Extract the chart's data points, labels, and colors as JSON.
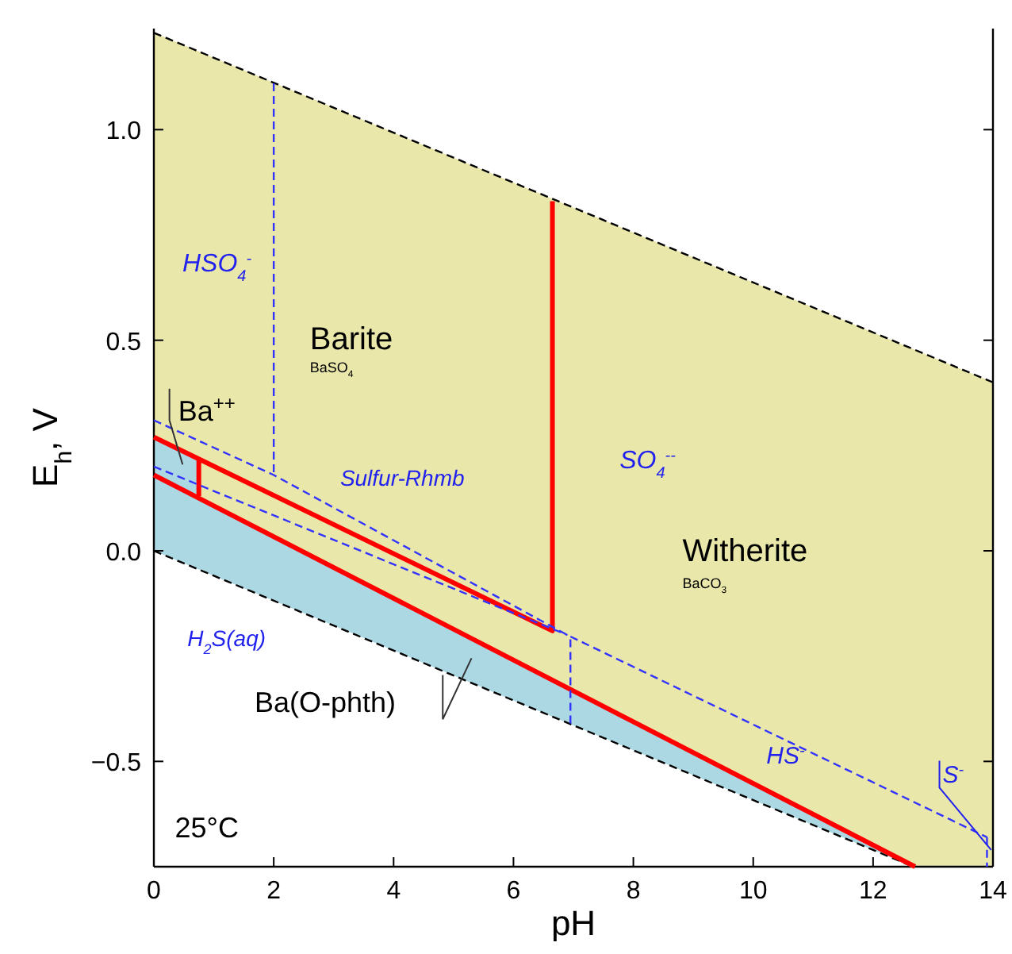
{
  "chart_data": {
    "type": "line",
    "xlabel": "pH",
    "ylabel": "E$_{h}$, V",
    "xlim": [
      0,
      14
    ],
    "ylim": [
      -0.75,
      1.24
    ],
    "xticks": [
      0,
      2,
      4,
      6,
      8,
      10,
      12,
      14
    ],
    "yticks": [
      {
        "value": -0.5,
        "label": "−0.5"
      },
      {
        "value": 0,
        "label": "0.0"
      },
      {
        "value": 0.5,
        "label": "0.5"
      },
      {
        "value": 1,
        "label": "1.0"
      }
    ],
    "series": [
      {
        "color": "#000000",
        "line_style": "dashed",
        "x": [
          0,
          14
        ],
        "values": [
          1.23,
          0.4
        ]
      },
      {
        "color": "#000000",
        "line_style": "dashed",
        "x": [
          0,
          12.67
        ],
        "values": [
          0,
          -0.75
        ]
      },
      {
        "color": "#ff0000",
        "line_style": "solid",
        "x": [
          0,
          6.65,
          6.65,
          null,
          0,
          12.7,
          null,
          0.75,
          0.75
        ],
        "values": [
          0.27,
          -0.19,
          0.83,
          null,
          0.18,
          -0.75,
          null,
          0.22,
          0.13
        ]
      },
      {
        "color": "#3333ff",
        "line_style": "dashed",
        "x": [
          2,
          2,
          null,
          0,
          2,
          6.9,
          13.9,
          null,
          0,
          6.9,
          null,
          6.95,
          6.95,
          null,
          13.9,
          13.9
        ],
        "values": [
          1.11,
          0.18,
          null,
          0.31,
          0.18,
          -0.2,
          -0.68,
          null,
          0.2,
          -0.2,
          null,
          -0.21,
          -0.41,
          null,
          -0.68,
          -0.75
        ]
      }
    ],
    "annotations": [
      "HSO$_{4}$$^{-}$",
      "Barite",
      "BaSO$_{4}$",
      "Ba$^{++}$",
      "Sulfur-Rhmb",
      "SO$_{4}$$^{--}$",
      "Witherite",
      "BaCO$_{3}$",
      "H$_{2}$S(aq)",
      "Ba(O-phth)",
      "HS$^{-}$",
      {
        "text": "S$^{-}$",
        "x": 13.97,
        "y": -0.71
      },
      "25°C"
    ]
  }
}
